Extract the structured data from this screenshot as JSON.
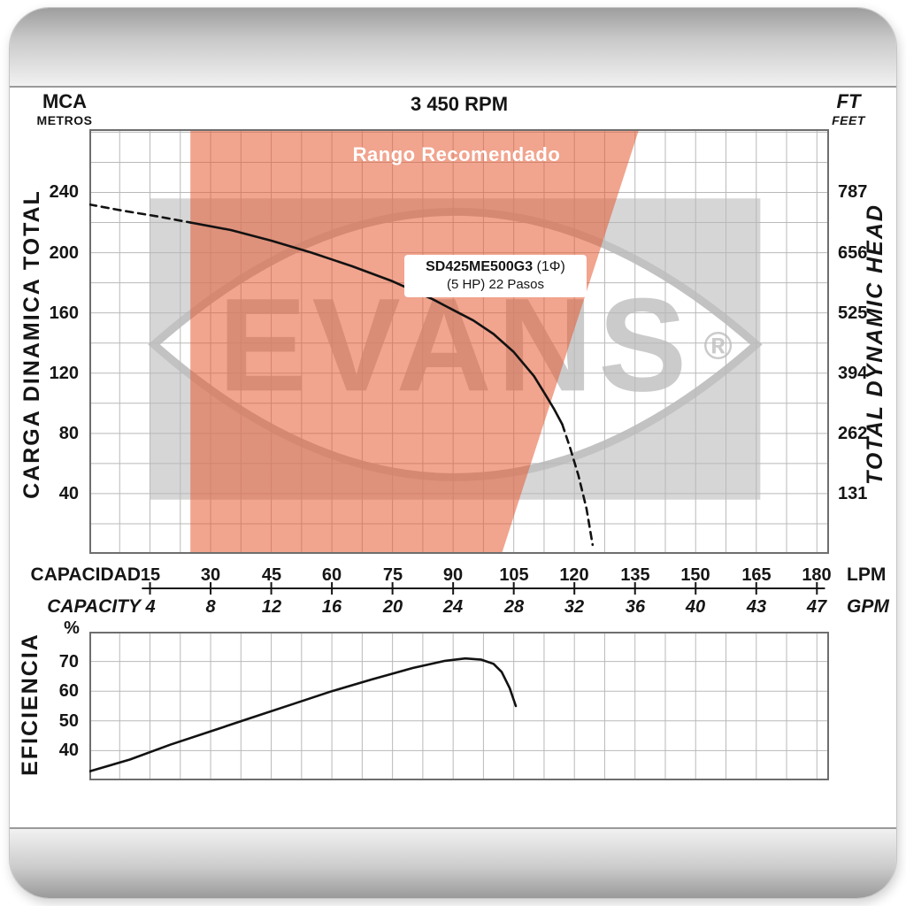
{
  "page": {
    "rpm_title": "3 450 RPM",
    "left_axis": {
      "unit_top": "MCA",
      "unit_bottom": "METROS",
      "label": "CARGA  DINAMICA  TOTAL"
    },
    "right_axis": {
      "unit_top": "FT",
      "unit_bottom": "FEET",
      "label": "TOTAL  DYNAMIC  HEAD"
    },
    "recommended_range_label": "Rango Recomendado",
    "model_box": {
      "model": "SD425ME500G3",
      "phase": "(1Φ)",
      "detail": "(5 HP)  22 Pasos"
    },
    "capacity_axis": {
      "label_es": "CAPACIDAD",
      "label_en": "CAPACITY",
      "lpm_unit": "LPM",
      "gpm_unit": "GPM"
    },
    "efficiency_axis": {
      "label": "EFICIENCIA",
      "unit": "%"
    },
    "watermark": {
      "text": "EVANS",
      "registered": "®"
    }
  },
  "colors": {
    "recommended_range_fill": "rgba(230,90,50,0.55)",
    "grid_line": "#b9b9b9",
    "plot_border": "#6e6e6e",
    "curve": "#121212",
    "watermark_fill": "#d6d6d6",
    "watermark_stroke": "#c2c2c2",
    "watermark_text": "#cbcbcb",
    "axis_line": "#141414",
    "range_label_text": "#ffffff"
  },
  "chart_data": [
    {
      "type": "line",
      "name": "head-capacity-curve",
      "title": "3 450 RPM",
      "x_axis": {
        "unit_primary": "LPM",
        "unit_secondary": "GPM",
        "range": [
          0,
          183
        ],
        "grid_step": 7.5,
        "ticks_lpm": [
          15,
          30,
          45,
          60,
          75,
          90,
          105,
          120,
          135,
          150,
          165,
          180
        ],
        "ticks_gpm": [
          4,
          8,
          12,
          16,
          20,
          24,
          28,
          32,
          36,
          40,
          43,
          47
        ]
      },
      "y_axis": {
        "unit_primary": "m (MCA)",
        "unit_secondary": "ft",
        "range": [
          0,
          282
        ],
        "grid_step": 20,
        "ticks_m": [
          240,
          200,
          160,
          120,
          80,
          40
        ],
        "ticks_ft": [
          787,
          656,
          525,
          394,
          262,
          131
        ]
      },
      "recommended_range_polygon": [
        [
          25,
          282
        ],
        [
          136,
          282
        ],
        [
          102,
          0
        ],
        [
          25,
          0
        ]
      ],
      "watermark_rect": {
        "x1": 15,
        "y1": 36,
        "x2": 166,
        "y2": 236
      },
      "series": [
        {
          "name": "head-curve-dashed-left",
          "style": "dashed",
          "points": [
            [
              0,
              232
            ],
            [
              8,
              228
            ],
            [
              17,
              224
            ],
            [
              25,
              220
            ]
          ]
        },
        {
          "name": "head-curve-solid",
          "style": "solid",
          "points": [
            [
              25,
              220
            ],
            [
              35,
              215
            ],
            [
              45,
              208
            ],
            [
              55,
              200
            ],
            [
              65,
              191
            ],
            [
              75,
              181
            ],
            [
              85,
              169
            ],
            [
              90,
              162
            ],
            [
              95,
              155
            ],
            [
              100,
              146
            ],
            [
              105,
              134
            ],
            [
              110,
              118
            ],
            [
              113,
              105
            ],
            [
              115,
              96
            ],
            [
              117,
              86
            ]
          ]
        },
        {
          "name": "head-curve-dashed-right",
          "style": "dashed",
          "points": [
            [
              117,
              86
            ],
            [
              119,
              70
            ],
            [
              121,
              52
            ],
            [
              123,
              30
            ],
            [
              124.5,
              6
            ]
          ]
        }
      ]
    },
    {
      "type": "line",
      "name": "efficiency-curve",
      "x_axis": {
        "unit": "LPM",
        "range": [
          0,
          183
        ],
        "grid_step": 7.5
      },
      "y_axis": {
        "unit": "%",
        "range": [
          30,
          80
        ],
        "grid_step": 10,
        "ticks": [
          70,
          60,
          50,
          40
        ]
      },
      "series": [
        {
          "name": "efficiency",
          "style": "solid",
          "points": [
            [
              0,
              33
            ],
            [
              10,
              37
            ],
            [
              20,
              42
            ],
            [
              30,
              46.5
            ],
            [
              40,
              51
            ],
            [
              50,
              55.5
            ],
            [
              60,
              60
            ],
            [
              70,
              64
            ],
            [
              80,
              67.8
            ],
            [
              88,
              70.2
            ],
            [
              93,
              71
            ],
            [
              97,
              70.6
            ],
            [
              100,
              69.2
            ],
            [
              102,
              66.5
            ],
            [
              104,
              61
            ],
            [
              105.5,
              55
            ]
          ]
        }
      ]
    }
  ]
}
